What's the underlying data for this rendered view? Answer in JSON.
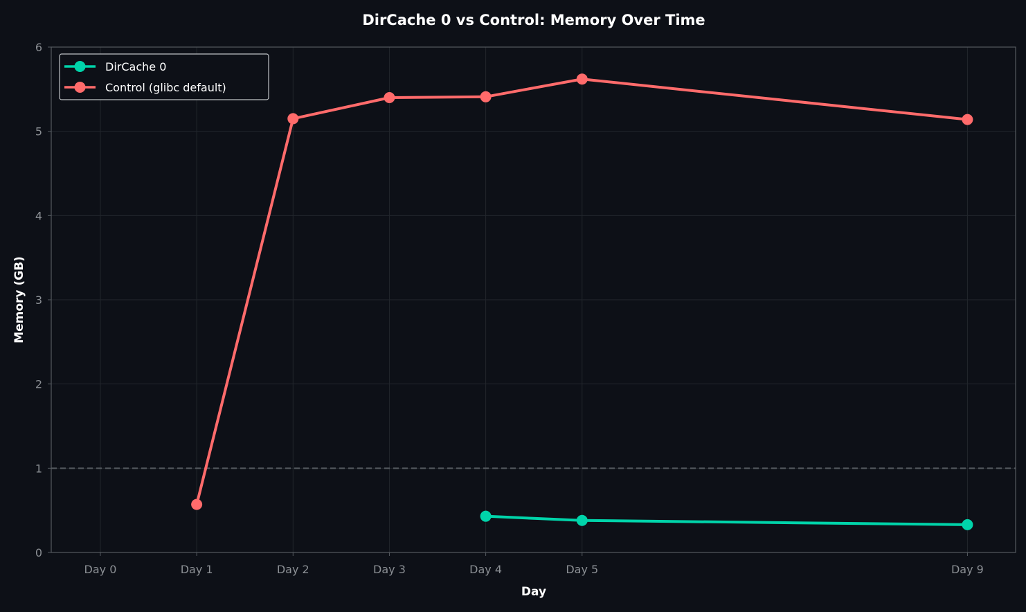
{
  "chart_data": {
    "type": "line",
    "title": "DirCache 0 vs Control: Memory Over Time",
    "xlabel": "Day",
    "ylabel": "Memory (GB)",
    "x_ticks": [
      0,
      1,
      2,
      3,
      4,
      5,
      9
    ],
    "x_tick_labels": [
      "Day 0",
      "Day 1",
      "Day 2",
      "Day 3",
      "Day 4",
      "Day 5",
      "Day 9"
    ],
    "y_ticks": [
      0,
      1,
      2,
      3,
      4,
      5,
      6
    ],
    "y_tick_labels": [
      "0",
      "1",
      "2",
      "3",
      "4",
      "5",
      "6"
    ],
    "xlim": [
      -0.51,
      9.5
    ],
    "ylim": [
      0,
      6
    ],
    "grid": true,
    "legend_position": "top-left",
    "reference_line": {
      "y": 1,
      "style": "dashed",
      "color": "#555a60"
    },
    "series": [
      {
        "name": "DirCache 0",
        "color": "#00d4aa",
        "x": [
          4,
          5,
          9
        ],
        "values": [
          0.43,
          0.38,
          0.33
        ]
      },
      {
        "name": "Control (glibc default)",
        "color": "#ff6b6b",
        "x": [
          1,
          2,
          3,
          4,
          5,
          9
        ],
        "values": [
          0.57,
          5.15,
          5.4,
          5.41,
          5.62,
          5.14
        ]
      }
    ],
    "colors": {
      "background": "#0d1017",
      "axis": "#555a60",
      "tick_text": "#8b8f94",
      "grid": "#22262c",
      "text": "#ffffff"
    }
  }
}
